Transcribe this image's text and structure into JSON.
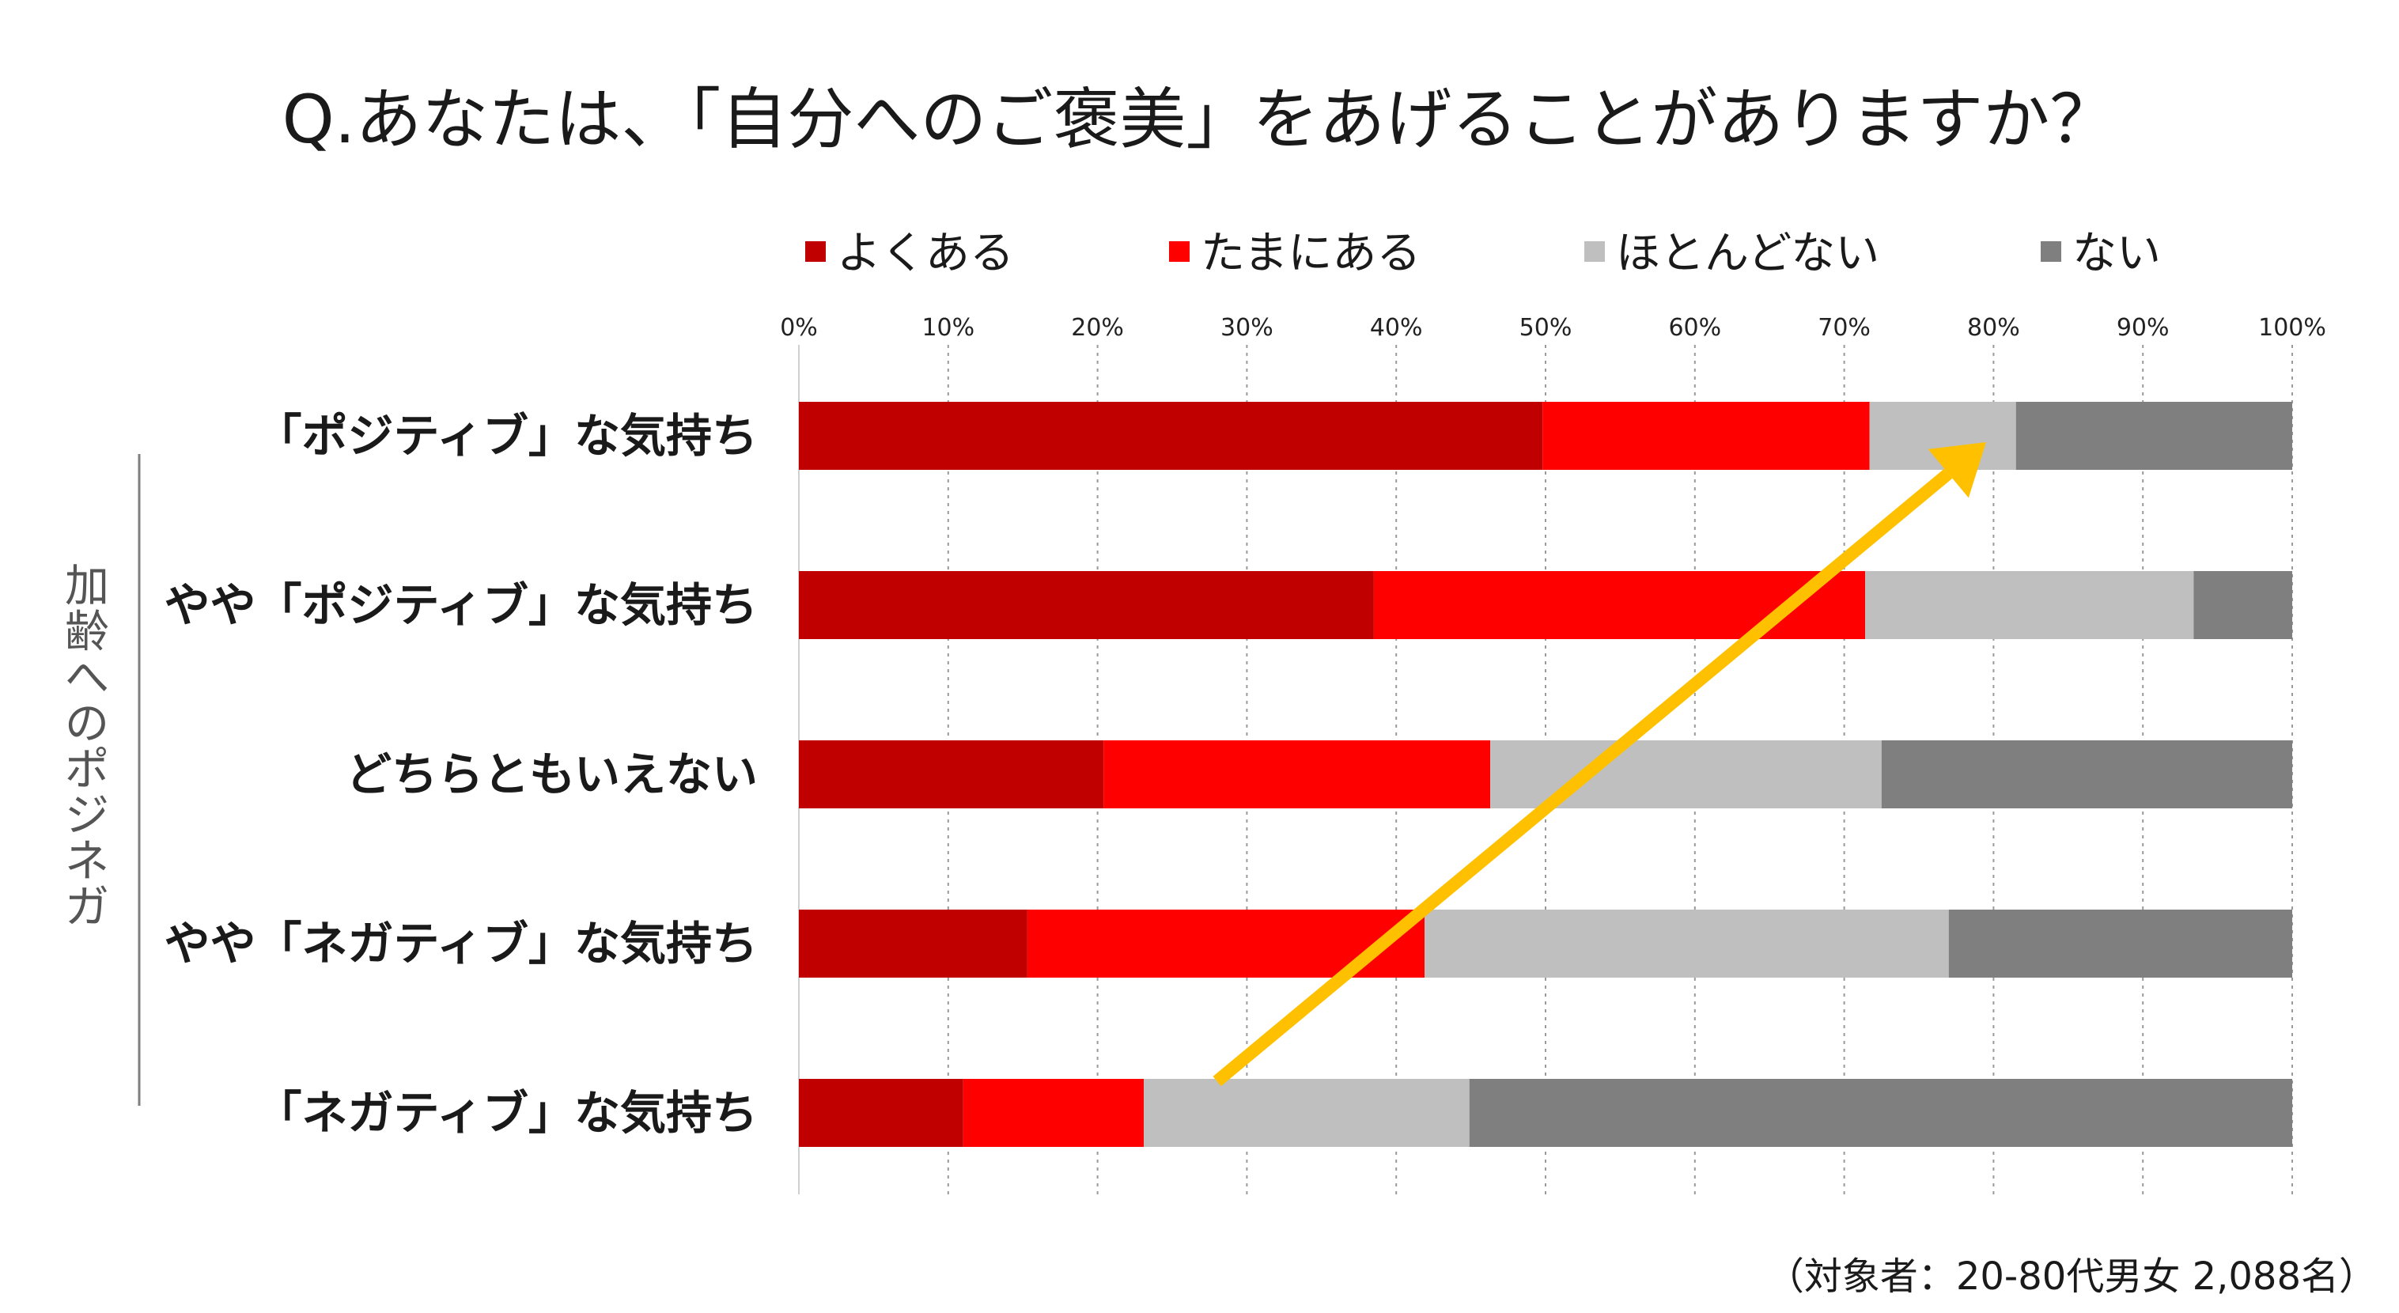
{
  "chart_data": {
    "type": "bar",
    "orientation": "horizontal",
    "stacked": true,
    "title": "Q.あなたは、「自分へのご褒美」をあげることがありますか？",
    "categories": [
      "「ポジティブ」な気持ち",
      "やや「ポジティブ」な気持ち",
      "どちらともいえない",
      "やや「ネガティブ」な気持ち",
      "「ネガティブ」な気持ち"
    ],
    "series": [
      {
        "name": "よくある",
        "color": "#c00000",
        "values": [
          49.8,
          38.5,
          20.4,
          15.3,
          11.0
        ]
      },
      {
        "name": "たまにある",
        "color": "#ff0000",
        "values": [
          21.9,
          32.9,
          25.9,
          26.6,
          12.1
        ]
      },
      {
        "name": "ほとんどない",
        "color": "#bfbfbf",
        "values": [
          9.8,
          22.0,
          26.2,
          35.1,
          21.8
        ]
      },
      {
        "name": "ない",
        "color": "#7f7f7f",
        "values": [
          18.5,
          6.6,
          27.5,
          23.0,
          55.1
        ]
      }
    ],
    "x_ticks": [
      "0%",
      "10%",
      "20%",
      "30%",
      "40%",
      "50%",
      "60%",
      "70%",
      "80%",
      "90%",
      "100%"
    ],
    "xlim": [
      0,
      100
    ],
    "grid": "vertical-dotted",
    "legend_position": "top",
    "side_label": "加齢へのポジネガ",
    "annotation": {
      "type": "arrow",
      "color": "#ffc000",
      "from_category": "「ネガティブ」な気持ち",
      "to_category": "「ポジティブ」な気持ち"
    },
    "footnote": "（対象者：20-80代男女 2,088名）"
  }
}
